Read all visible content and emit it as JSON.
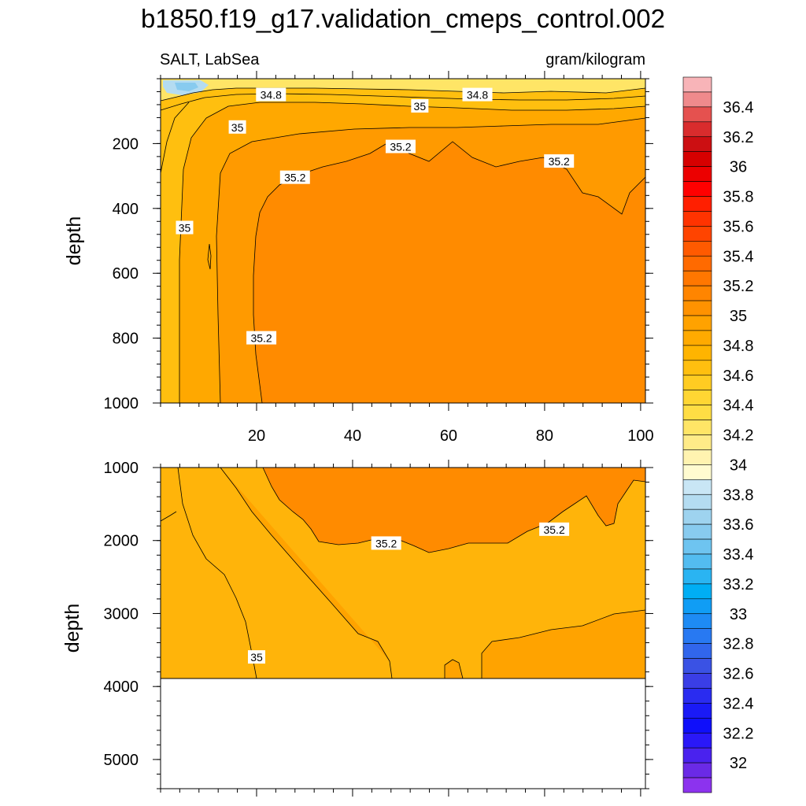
{
  "chart_data": {
    "type": "contour",
    "title": "b1850.f19_g17.validation_cmeps_control.002",
    "left_subtitle": "SALT, LabSea",
    "right_subtitle": "gram/kilogram",
    "ylabel": "depth",
    "x_ticks": [
      "20",
      "40",
      "60",
      "80",
      "100"
    ],
    "x_range": [
      0,
      101
    ],
    "panels": [
      {
        "name": "upper",
        "ylim": [
          0,
          1000
        ],
        "y_ticks": [
          "200",
          "400",
          "600",
          "800",
          "1000"
        ],
        "contour_labels": [
          {
            "text": "34.8",
            "x": 23,
            "depth": 50
          },
          {
            "text": "35",
            "x": 16,
            "depth": 150
          },
          {
            "text": "35",
            "x": 54,
            "depth": 85
          },
          {
            "text": "34.8",
            "x": 66,
            "depth": 50
          },
          {
            "text": "35.2",
            "x": 50,
            "depth": 210
          },
          {
            "text": "35.2",
            "x": 83,
            "depth": 255
          },
          {
            "text": "35.2",
            "x": 28,
            "depth": 305
          },
          {
            "text": "35",
            "x": 5,
            "depth": 460
          },
          {
            "text": "35.2",
            "x": 21,
            "depth": 800
          }
        ]
      },
      {
        "name": "lower",
        "ylim": [
          1000,
          5400
        ],
        "y_ticks": [
          "1000",
          "2000",
          "3000",
          "4000",
          "5000"
        ],
        "bottom_depth": 3870,
        "contour_labels": [
          {
            "text": "35.2",
            "x": 47,
            "depth": 2040
          },
          {
            "text": "35.2",
            "x": 82,
            "depth": 1850
          },
          {
            "text": "35",
            "x": 20,
            "depth": 3600
          }
        ]
      }
    ],
    "colorbar": {
      "labels": [
        "36.4",
        "36.2",
        "36",
        "35.8",
        "35.6",
        "35.4",
        "35.2",
        "35",
        "34.8",
        "34.6",
        "34.4",
        "34.2",
        "34",
        "33.8",
        "33.6",
        "33.4",
        "33.2",
        "33",
        "32.8",
        "32.6",
        "32.4",
        "32.2",
        "32"
      ],
      "colors": [
        "#f8b4b8",
        "#ef8a8c",
        "#e5514f",
        "#d92c2d",
        "#cc0f12",
        "#d60000",
        "#ec0000",
        "#ff0000",
        "#ff1f00",
        "#ff3300",
        "#ff4400",
        "#ff5a00",
        "#ff6a00",
        "#ff7700",
        "#ff8500",
        "#ff9200",
        "#ffa200",
        "#ffaa00",
        "#ffb400",
        "#ffbf0f",
        "#ffcc22",
        "#ffd633",
        "#ffdd44",
        "#ffe566",
        "#ffeb88",
        "#fff3b0",
        "#fffbd0",
        "#c9e6f5",
        "#b4dcf1",
        "#9ed3ef",
        "#88cbef",
        "#6ec4f0",
        "#53bcf0",
        "#2ab4f2",
        "#00aef4",
        "#109df5",
        "#1e8bf4",
        "#2879f2",
        "#3166ec",
        "#3a52e4",
        "#3a3ee6",
        "#2a2cf0",
        "#1a1af6",
        "#0f0ffa",
        "#2a18f8",
        "#4a22ee",
        "#6a2ae6",
        "#8c33ee"
      ]
    }
  }
}
